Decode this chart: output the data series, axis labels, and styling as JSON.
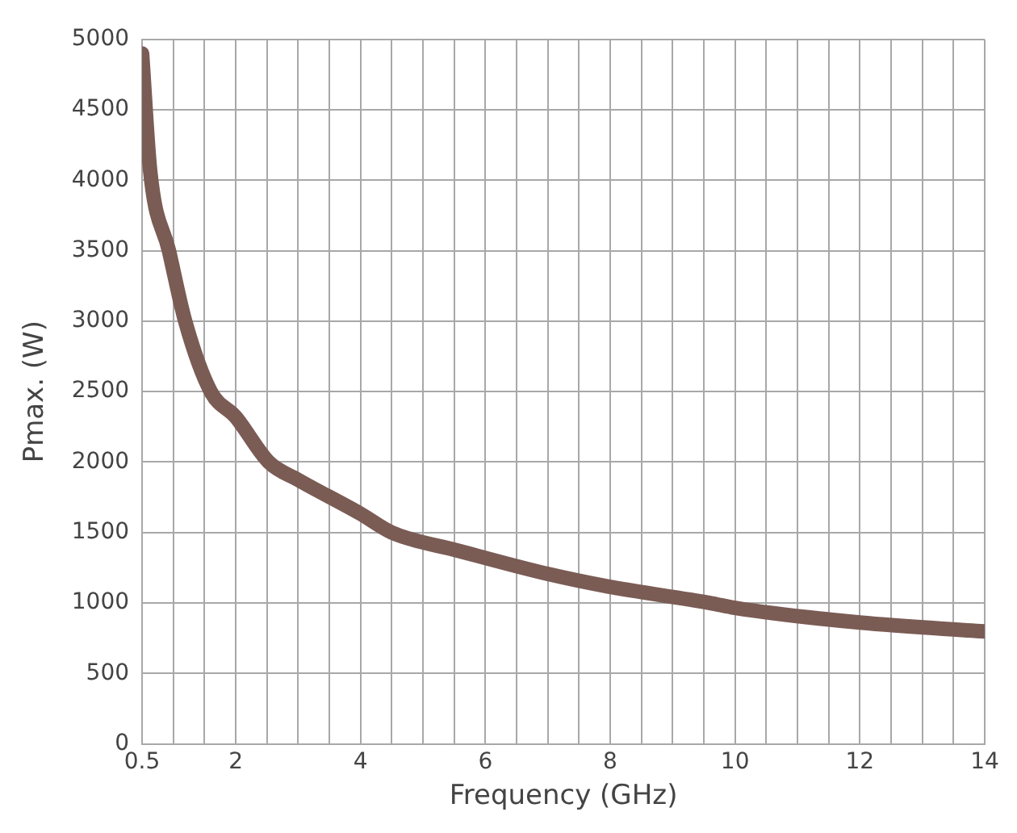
{
  "chart_data": {
    "type": "line",
    "xlabel": "Frequency (GHz)",
    "ylabel": "Pmax. (W)",
    "x": [
      0.5,
      0.63,
      0.93,
      1.19,
      1.6,
      2,
      2.53,
      3,
      4,
      4.5,
      5.55,
      7,
      8,
      9.6,
      10,
      12,
      14
    ],
    "series": [
      {
        "color": "#7a5c55",
        "values": [
          4900,
          4065,
          3500,
          3000,
          2500,
          2320,
          2000,
          1874,
          1633,
          1500,
          1373,
          1206,
          1114,
          1000,
          965,
          861,
          798
        ]
      }
    ],
    "xlim": [
      0.5,
      14
    ],
    "xticks": [
      0.5,
      {
        "value": 1,
        "label": null
      },
      {
        "value": 1.5,
        "label": null
      },
      2,
      {
        "value": 2.5,
        "label": null
      },
      {
        "value": 3,
        "label": null
      },
      {
        "value": 3.5,
        "label": null
      },
      4,
      {
        "value": 4.5,
        "label": null
      },
      {
        "value": 5,
        "label": null
      },
      {
        "value": 5.5,
        "label": null
      },
      6,
      {
        "value": 6.5,
        "label": null
      },
      {
        "value": 7,
        "label": null
      },
      {
        "value": 7.5,
        "label": null
      },
      8,
      {
        "value": 8.5,
        "label": null
      },
      {
        "value": 9,
        "label": null
      },
      {
        "value": 9.5,
        "label": null
      },
      10,
      {
        "value": 10.5,
        "label": null
      },
      {
        "value": 11,
        "label": null
      },
      {
        "value": 11.5,
        "label": null
      },
      12,
      {
        "value": 12.5,
        "label": null
      },
      {
        "value": 13,
        "label": null
      },
      {
        "value": 13.5,
        "label": null
      },
      14
    ],
    "ylim": [
      0,
      5000
    ],
    "yticks": [
      0,
      500,
      1000,
      1500,
      2000,
      2500,
      3000,
      3500,
      4000,
      4500,
      5000
    ],
    "grid": true,
    "legend": false,
    "marker": "none",
    "line_style": "solid"
  }
}
